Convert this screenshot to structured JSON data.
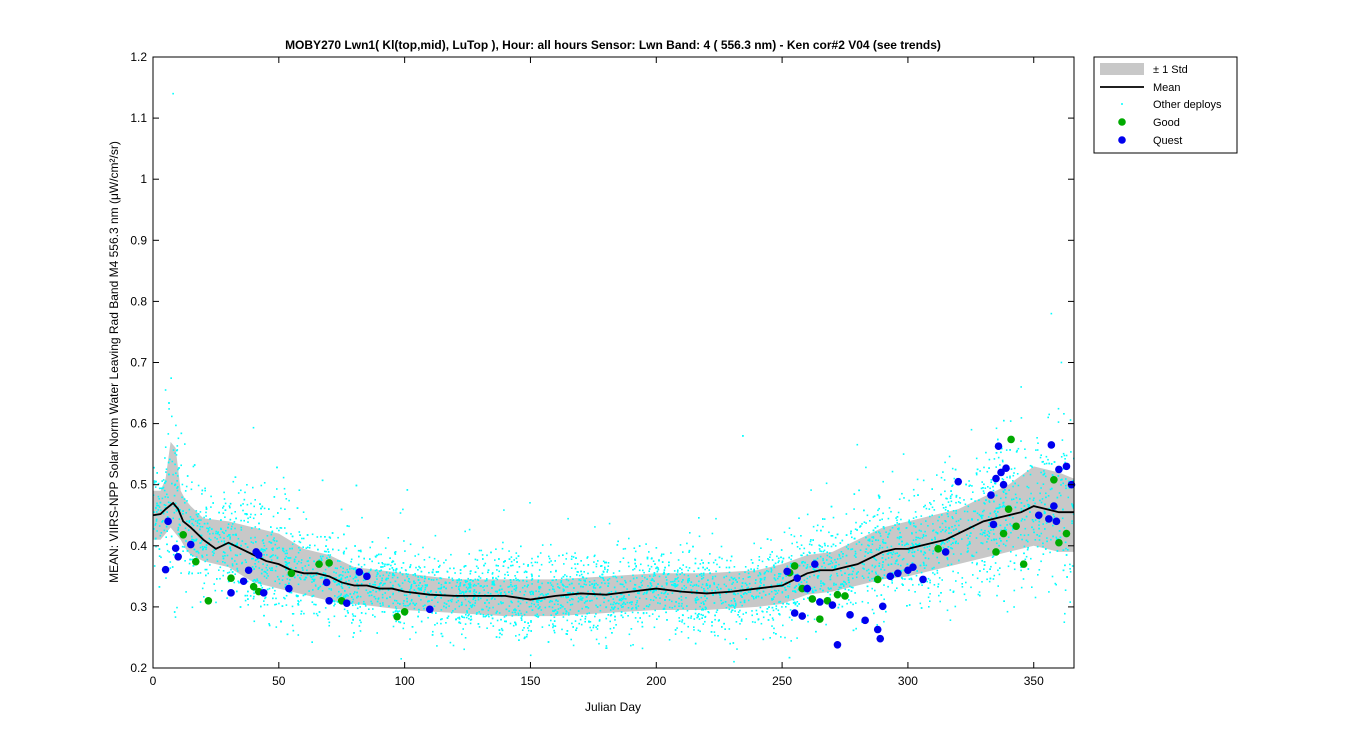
{
  "chart_data": {
    "type": "scatter",
    "title": "MOBY270   Lwn1( Kl(top,mid), LuTop ),   Hour: all hours  Sensor: Lwn Band: 4 ( 556.3 nm)  - Ken cor#2 V04 (see trends)",
    "xlabel": "Julian Day",
    "ylabel": "MEAN: VIIRS-NPP Solar Norm Water Leaving Rad Band M4 556.3 nm (μW/cm²/sr)",
    "xlim": [
      0,
      366
    ],
    "ylim": [
      0.2,
      1.2
    ],
    "xticks": [
      "0",
      "50",
      "100",
      "150",
      "200",
      "250",
      "300",
      "350"
    ],
    "yticks": [
      "0.2",
      "0.3",
      "0.4",
      "0.5",
      "0.6",
      "0.7",
      "0.8",
      "0.9",
      "1",
      "1.1",
      "1.2"
    ],
    "grid": false,
    "legend_position": "outside-top-right",
    "legend": [
      "± 1 Std",
      "Mean",
      "Other deploys",
      "Good",
      "Quest"
    ],
    "colors": {
      "std_band": "#c8c8c8",
      "mean": "#000000",
      "other": "#00ffff",
      "good": "#00aa00",
      "quest": "#0000ee"
    },
    "mean_line": {
      "x": [
        0,
        3,
        5,
        8,
        10,
        12,
        15,
        20,
        25,
        30,
        35,
        40,
        45,
        50,
        55,
        60,
        65,
        70,
        75,
        80,
        85,
        90,
        95,
        100,
        110,
        120,
        130,
        140,
        150,
        160,
        170,
        180,
        190,
        200,
        210,
        220,
        230,
        240,
        250,
        255,
        260,
        265,
        270,
        275,
        280,
        285,
        290,
        295,
        300,
        305,
        310,
        315,
        320,
        325,
        330,
        335,
        340,
        345,
        350,
        355,
        360,
        366
      ],
      "y": [
        0.45,
        0.452,
        0.46,
        0.47,
        0.46,
        0.44,
        0.43,
        0.41,
        0.395,
        0.405,
        0.395,
        0.385,
        0.375,
        0.37,
        0.36,
        0.355,
        0.355,
        0.35,
        0.34,
        0.335,
        0.335,
        0.33,
        0.33,
        0.325,
        0.32,
        0.318,
        0.318,
        0.318,
        0.312,
        0.318,
        0.322,
        0.32,
        0.325,
        0.33,
        0.325,
        0.322,
        0.325,
        0.33,
        0.335,
        0.345,
        0.355,
        0.36,
        0.36,
        0.365,
        0.37,
        0.38,
        0.39,
        0.395,
        0.395,
        0.4,
        0.405,
        0.41,
        0.42,
        0.43,
        0.44,
        0.445,
        0.45,
        0.455,
        0.465,
        0.46,
        0.455,
        0.455
      ]
    },
    "std_band": {
      "x": [
        0,
        3,
        5,
        7,
        9,
        11,
        13,
        15,
        20,
        30,
        40,
        50,
        60,
        70,
        80,
        90,
        100,
        120,
        140,
        160,
        180,
        200,
        220,
        240,
        250,
        260,
        270,
        280,
        290,
        300,
        310,
        320,
        330,
        340,
        350,
        360,
        366
      ],
      "upper": [
        0.49,
        0.49,
        0.51,
        0.57,
        0.56,
        0.49,
        0.475,
        0.465,
        0.445,
        0.44,
        0.43,
        0.42,
        0.395,
        0.385,
        0.365,
        0.36,
        0.355,
        0.345,
        0.345,
        0.345,
        0.35,
        0.355,
        0.355,
        0.36,
        0.37,
        0.385,
        0.39,
        0.41,
        0.43,
        0.44,
        0.45,
        0.46,
        0.48,
        0.5,
        0.53,
        0.52,
        0.51
      ],
      "lower": [
        0.41,
        0.41,
        0.42,
        0.43,
        0.42,
        0.41,
        0.395,
        0.385,
        0.375,
        0.365,
        0.34,
        0.33,
        0.32,
        0.31,
        0.305,
        0.3,
        0.295,
        0.29,
        0.285,
        0.285,
        0.29,
        0.295,
        0.295,
        0.3,
        0.305,
        0.32,
        0.325,
        0.335,
        0.345,
        0.35,
        0.36,
        0.37,
        0.38,
        0.39,
        0.4,
        0.39,
        0.39
      ]
    },
    "good_points": {
      "x": [
        12,
        17,
        22,
        31,
        40,
        42,
        55,
        66,
        70,
        75,
        97,
        100,
        253,
        255,
        258,
        262,
        265,
        268,
        272,
        275,
        288,
        312,
        335,
        338,
        340,
        341,
        343,
        346,
        358,
        360,
        363
      ],
      "y": [
        0.418,
        0.374,
        0.31,
        0.347,
        0.333,
        0.325,
        0.355,
        0.37,
        0.372,
        0.31,
        0.284,
        0.292,
        0.356,
        0.367,
        0.33,
        0.313,
        0.28,
        0.31,
        0.32,
        0.318,
        0.345,
        0.395,
        0.39,
        0.42,
        0.46,
        0.574,
        0.432,
        0.37,
        0.508,
        0.405,
        0.42
      ]
    },
    "quest_points": {
      "x": [
        5,
        6,
        9,
        10,
        15,
        31,
        36,
        38,
        41,
        42,
        44,
        54,
        69,
        70,
        77,
        82,
        85,
        110,
        252,
        255,
        256,
        258,
        260,
        263,
        265,
        270,
        272,
        277,
        283,
        288,
        289,
        290,
        293,
        296,
        300,
        302,
        306,
        315,
        320,
        333,
        334,
        335,
        336,
        337,
        338,
        339,
        352,
        356,
        357,
        358,
        359,
        360,
        363,
        365
      ],
      "y": [
        0.361,
        0.44,
        0.396,
        0.382,
        0.402,
        0.323,
        0.342,
        0.36,
        0.39,
        0.385,
        0.323,
        0.33,
        0.34,
        0.31,
        0.306,
        0.357,
        0.35,
        0.296,
        0.358,
        0.29,
        0.347,
        0.285,
        0.33,
        0.37,
        0.308,
        0.303,
        0.238,
        0.287,
        0.278,
        0.263,
        0.248,
        0.301,
        0.35,
        0.355,
        0.36,
        0.365,
        0.345,
        0.39,
        0.505,
        0.483,
        0.435,
        0.51,
        0.563,
        0.52,
        0.5,
        0.527,
        0.45,
        0.444,
        0.565,
        0.465,
        0.44,
        0.525,
        0.53,
        0.5
      ]
    },
    "other_note": "dense cyan scatter of other deployments, mostly between 0.27 and 0.6 with outliers up to 1.14"
  }
}
